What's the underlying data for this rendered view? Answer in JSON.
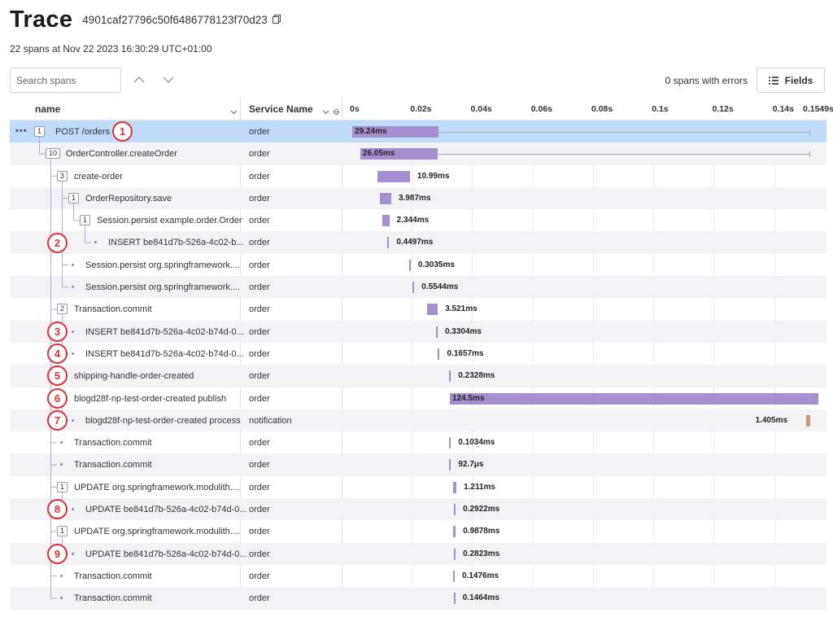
{
  "header": {
    "title": "Trace",
    "trace_id": "4901caf27796c50f6486778123f70d23",
    "subtitle": "22 spans at Nov 22 2023 16:30:29 UTC+01:00"
  },
  "toolbar": {
    "search_placeholder": "Search spans",
    "errors_text": "0 spans with errors",
    "fields_label": "Fields"
  },
  "columns": {
    "name": "name",
    "service": "Service Name",
    "ticks": [
      "0s",
      "0.02s",
      "0.04s",
      "0.06s",
      "0.08s",
      "0.1s",
      "0.12s",
      "0.14s",
      "0.1549s"
    ]
  },
  "spans": [
    {
      "label": "POST /orders",
      "service": "order",
      "count": "1",
      "duration": "29.24ms",
      "annotation": "1"
    },
    {
      "label": "OrderController.createOrder",
      "service": "order",
      "count": "10",
      "duration": "26.05ms",
      "annotation": ""
    },
    {
      "label": "create-order",
      "service": "order",
      "count": "3",
      "duration": "10.99ms",
      "annotation": ""
    },
    {
      "label": "OrderRepository.save",
      "service": "order",
      "count": "1",
      "duration": "3.987ms",
      "annotation": ""
    },
    {
      "label": "Session.persist example.order.Order",
      "service": "order",
      "count": "1",
      "duration": "2.344ms",
      "annotation": ""
    },
    {
      "label": "INSERT be841d7b-526a-4c02-b...",
      "service": "order",
      "count": "",
      "duration": "0.4497ms",
      "annotation": "2"
    },
    {
      "label": "Session.persist org.springframework....",
      "service": "order",
      "count": "",
      "duration": "0.3035ms",
      "annotation": ""
    },
    {
      "label": "Session.persist org.springframework....",
      "service": "order",
      "count": "",
      "duration": "0.5544ms",
      "annotation": ""
    },
    {
      "label": "Transaction.commit",
      "service": "order",
      "count": "2",
      "duration": "3.521ms",
      "annotation": ""
    },
    {
      "label": "INSERT be841d7b-526a-4c02-b74d-0...",
      "service": "order",
      "count": "",
      "duration": "0.3304ms",
      "annotation": "3"
    },
    {
      "label": "INSERT be841d7b-526a-4c02-b74d-0...",
      "service": "order",
      "count": "",
      "duration": "0.1657ms",
      "annotation": "4"
    },
    {
      "label": "shipping-handle-order-created",
      "service": "order",
      "count": "",
      "duration": "0.2328ms",
      "annotation": "5"
    },
    {
      "label": "blogd28f-np-test-order-created publish",
      "service": "order",
      "count": "",
      "duration": "124.5ms",
      "annotation": "6"
    },
    {
      "label": "blogd28f-np-test-order-created process",
      "service": "notification",
      "count": "",
      "duration": "1.405ms",
      "annotation": "7"
    },
    {
      "label": "Transaction.commit",
      "service": "order",
      "count": "",
      "duration": "0.1034ms",
      "annotation": ""
    },
    {
      "label": "Transaction.commit",
      "service": "order",
      "count": "",
      "duration": "92.7μs",
      "annotation": ""
    },
    {
      "label": "UPDATE org.springframework.modulith....",
      "service": "order",
      "count": "1",
      "duration": "1.211ms",
      "annotation": ""
    },
    {
      "label": "UPDATE be841d7b-526a-4c02-b74d-0...",
      "service": "order",
      "count": "",
      "duration": "0.2922ms",
      "annotation": "8"
    },
    {
      "label": "UPDATE org.springframework.modulith....",
      "service": "order",
      "count": "1",
      "duration": "0.9878ms",
      "annotation": ""
    },
    {
      "label": "UPDATE be841d7b-526a-4c02-b74d-0...",
      "service": "order",
      "count": "",
      "duration": "0.2823ms",
      "annotation": "9"
    },
    {
      "label": "Transaction.commit",
      "service": "order",
      "count": "",
      "duration": "0.1476ms",
      "annotation": ""
    },
    {
      "label": "Transaction.commit",
      "service": "order",
      "count": "",
      "duration": "0.1464ms",
      "annotation": ""
    }
  ],
  "colors": {
    "bar": "#a68fd0",
    "notification_bar": "#cf9a72",
    "selected_row": "#bfdbf7",
    "annotation": "#e0303a"
  }
}
